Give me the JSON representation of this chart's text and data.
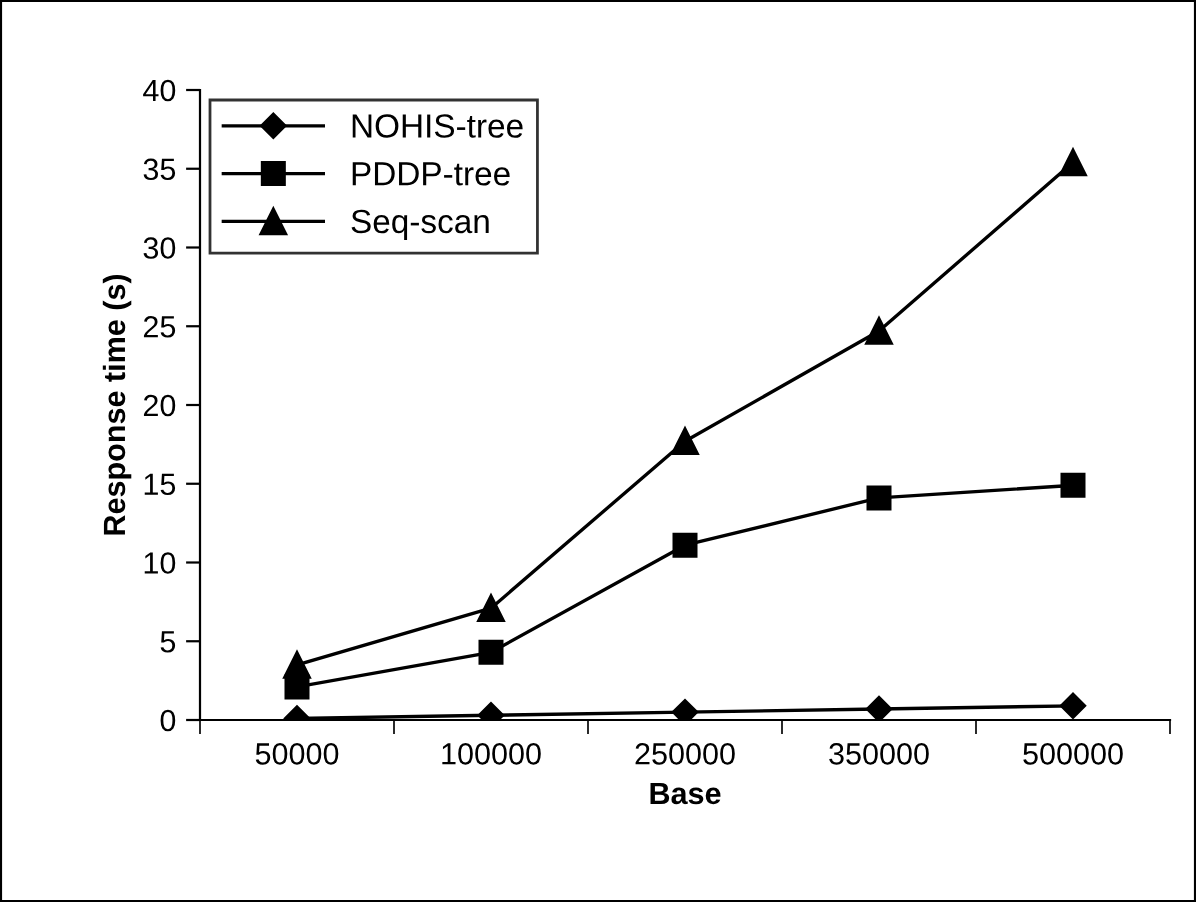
{
  "chart_data": {
    "type": "line",
    "xlabel": "Base",
    "ylabel": "Response time (s)",
    "categories": [
      "50000",
      "100000",
      "250000",
      "350000",
      "500000"
    ],
    "series": [
      {
        "name": "NOHIS-tree",
        "color": "#000000",
        "marker": "diamond",
        "values": [
          0.1,
          0.3,
          0.5,
          0.7,
          0.9
        ]
      },
      {
        "name": "PDDP-tree",
        "color": "#000000",
        "marker": "square",
        "values": [
          2.1,
          4.3,
          11.1,
          14.1,
          14.9
        ]
      },
      {
        "name": "Seq-scan",
        "color": "#000000",
        "marker": "triangle",
        "values": [
          3.5,
          7.1,
          17.7,
          24.7,
          35.4
        ]
      }
    ],
    "ylim": [
      0,
      40
    ],
    "yticks": [
      0,
      5,
      10,
      15,
      20,
      25,
      30,
      35,
      40
    ],
    "grid": false,
    "legend": "top left",
    "line_style": "solid"
  }
}
